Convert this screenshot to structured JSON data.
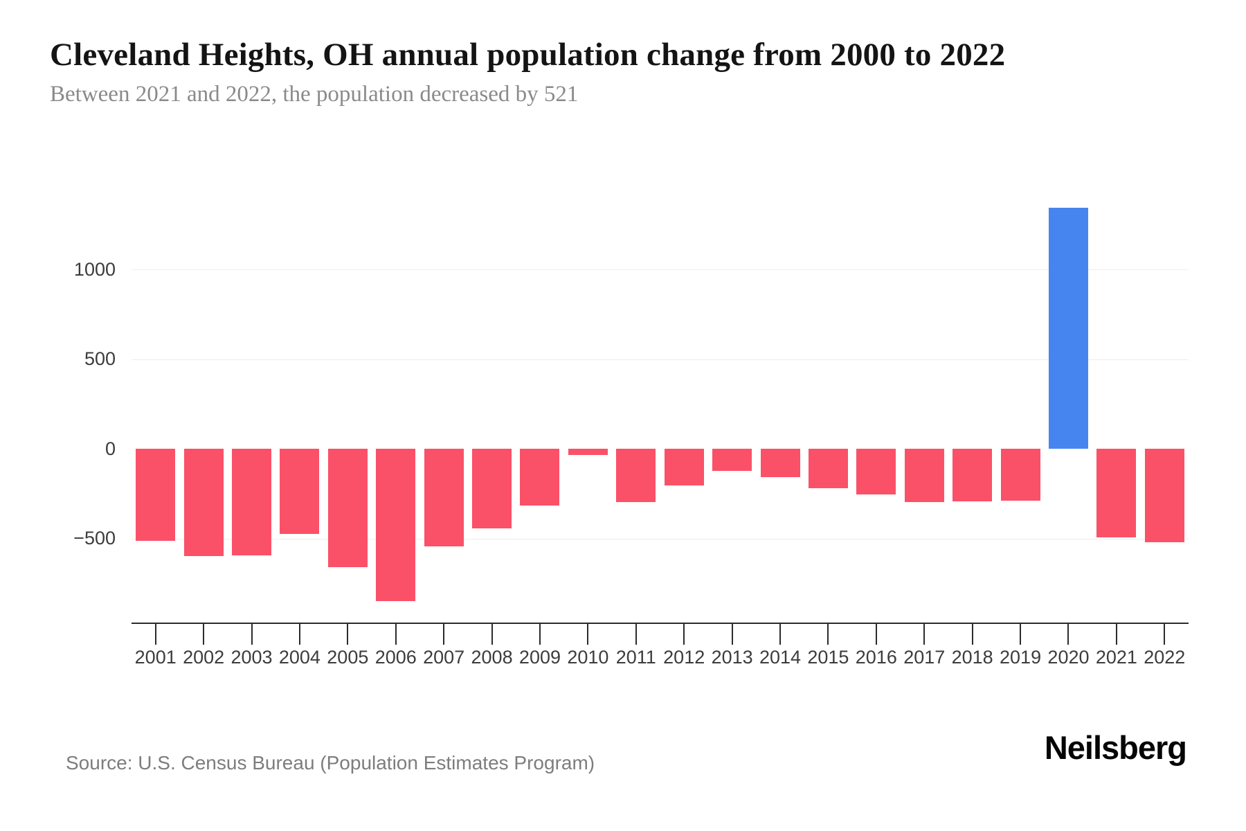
{
  "header": {
    "title": "Cleveland Heights, OH annual population change from 2000 to 2022",
    "subtitle": "Between 2021 and 2022, the population decreased by 521"
  },
  "chart_data": {
    "type": "bar",
    "title": "Cleveland Heights, OH annual population change from 2000 to 2022",
    "subtitle": "Between 2021 and 2022, the population decreased by 521",
    "categories": [
      "2001",
      "2002",
      "2003",
      "2004",
      "2005",
      "2006",
      "2007",
      "2008",
      "2009",
      "2010",
      "2011",
      "2012",
      "2013",
      "2014",
      "2015",
      "2016",
      "2017",
      "2018",
      "2019",
      "2020",
      "2021",
      "2022"
    ],
    "values": [
      -512,
      -597,
      -595,
      -474,
      -661,
      -848,
      -546,
      -443,
      -317,
      -36,
      -298,
      -206,
      -124,
      -158,
      -221,
      -254,
      -299,
      -295,
      -289,
      1345,
      -493,
      -521
    ],
    "xlabel": "",
    "ylabel": "",
    "y_ticks": [
      1000,
      500,
      0,
      -500
    ],
    "ylim": [
      -970,
      1540
    ],
    "grid": "horizontal",
    "legend": false,
    "negative_color": "#fa5168",
    "positive_color": "#4685f0"
  },
  "footer": {
    "source": "Source: U.S. Census Bureau (Population Estimates Program)",
    "logo": "Neilsberg"
  }
}
